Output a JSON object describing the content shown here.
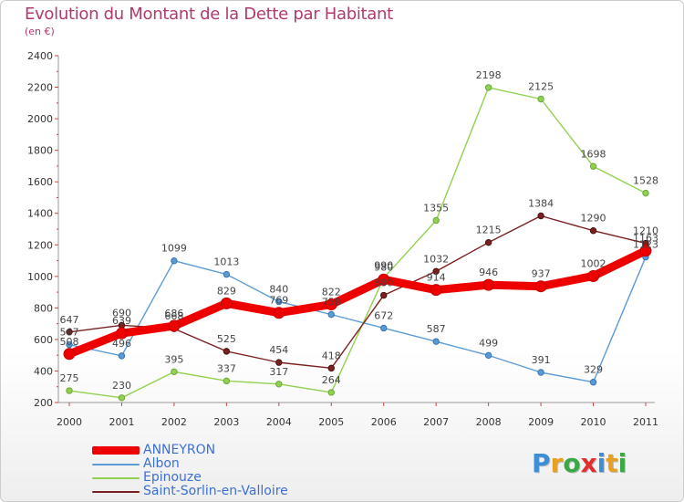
{
  "title": "Evolution du Montant de la Dette par Habitant",
  "subtitle": "(en €)",
  "logo": {
    "text": "Proxiti",
    "letters": [
      {
        "ch": "P",
        "color": "#3a8fd8"
      },
      {
        "ch": "r",
        "color": "#e8a020"
      },
      {
        "ch": "o",
        "color": "#3aa844"
      },
      {
        "ch": "x",
        "color": "#e03030"
      },
      {
        "ch": "i",
        "color": "#3a8fd8"
      },
      {
        "ch": "t",
        "color": "#e8a020"
      },
      {
        "ch": "i",
        "color": "#3aa844"
      }
    ]
  },
  "chart_data": {
    "type": "line",
    "x": [
      "2000",
      "2001",
      "2002",
      "2003",
      "2004",
      "2005",
      "2006",
      "2007",
      "2008",
      "2009",
      "2010",
      "2011"
    ],
    "ylim": [
      200,
      2400
    ],
    "yticks": [
      200,
      400,
      600,
      800,
      1000,
      1200,
      1400,
      1600,
      1800,
      2000,
      2200,
      2400
    ],
    "grid": false,
    "legend_position": "bottom-left",
    "series": [
      {
        "name": "ANNEYRON",
        "color": "#ee0000",
        "values": [
          508,
          639,
          686,
          829,
          769,
          822,
          980,
          914,
          946,
          937,
          1002,
          1163
        ]
      },
      {
        "name": "Albon",
        "color": "#5b9bd5",
        "values": [
          567,
          496,
          1099,
          1013,
          840,
          758,
          672,
          587,
          499,
          391,
          329,
          1123
        ]
      },
      {
        "name": "Epinouze",
        "color": "#92d050",
        "values": [
          275,
          230,
          395,
          337,
          317,
          264,
          990,
          1355,
          2198,
          2125,
          1698,
          1528
        ]
      },
      {
        "name": "Saint-Sorlin-en-Valloire",
        "color": "#7b2020",
        "values": [
          647,
          690,
          668,
          525,
          454,
          418,
          880,
          1032,
          1215,
          1384,
          1290,
          1210
        ]
      }
    ]
  }
}
